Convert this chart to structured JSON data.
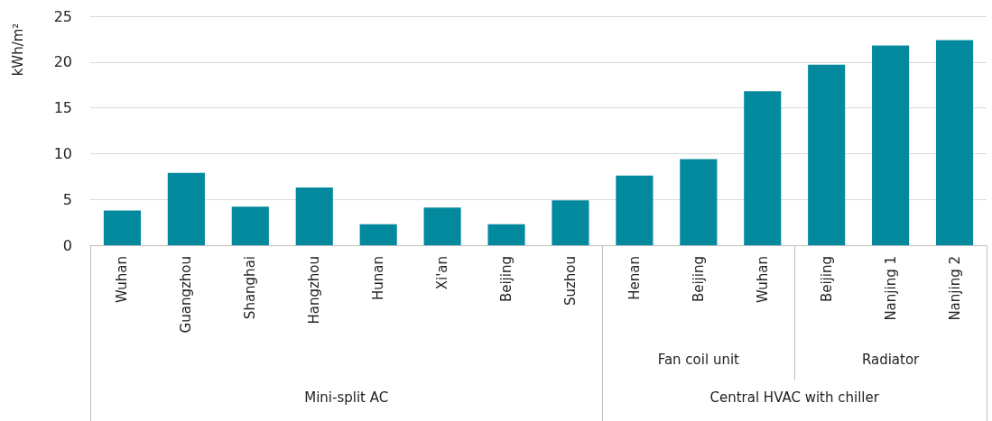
{
  "chart_data": {
    "type": "bar",
    "ylabel": "kWh/m²",
    "categories": [
      "Wuhan",
      "Guangzhou",
      "Shanghai",
      "Hangzhou",
      "Hunan",
      "Xi'an",
      "Beijing",
      "Suzhou",
      "Henan",
      "Beijing",
      "Wuhan",
      "Beijing",
      "Nanjing 1",
      "Nanjing 2"
    ],
    "values": [
      3.8,
      7.9,
      4.2,
      6.3,
      2.3,
      4.1,
      2.3,
      4.9,
      7.6,
      9.4,
      16.8,
      19.7,
      21.8,
      22.4
    ],
    "color": "#03899e",
    "ylim": [
      0,
      25
    ],
    "yticks": [
      0,
      5,
      10,
      15,
      20,
      25
    ],
    "grid": true,
    "annotations": [
      "Fan coil unit",
      "Radiator",
      "Mini-split AC",
      "Central HVAC with chiller"
    ]
  }
}
